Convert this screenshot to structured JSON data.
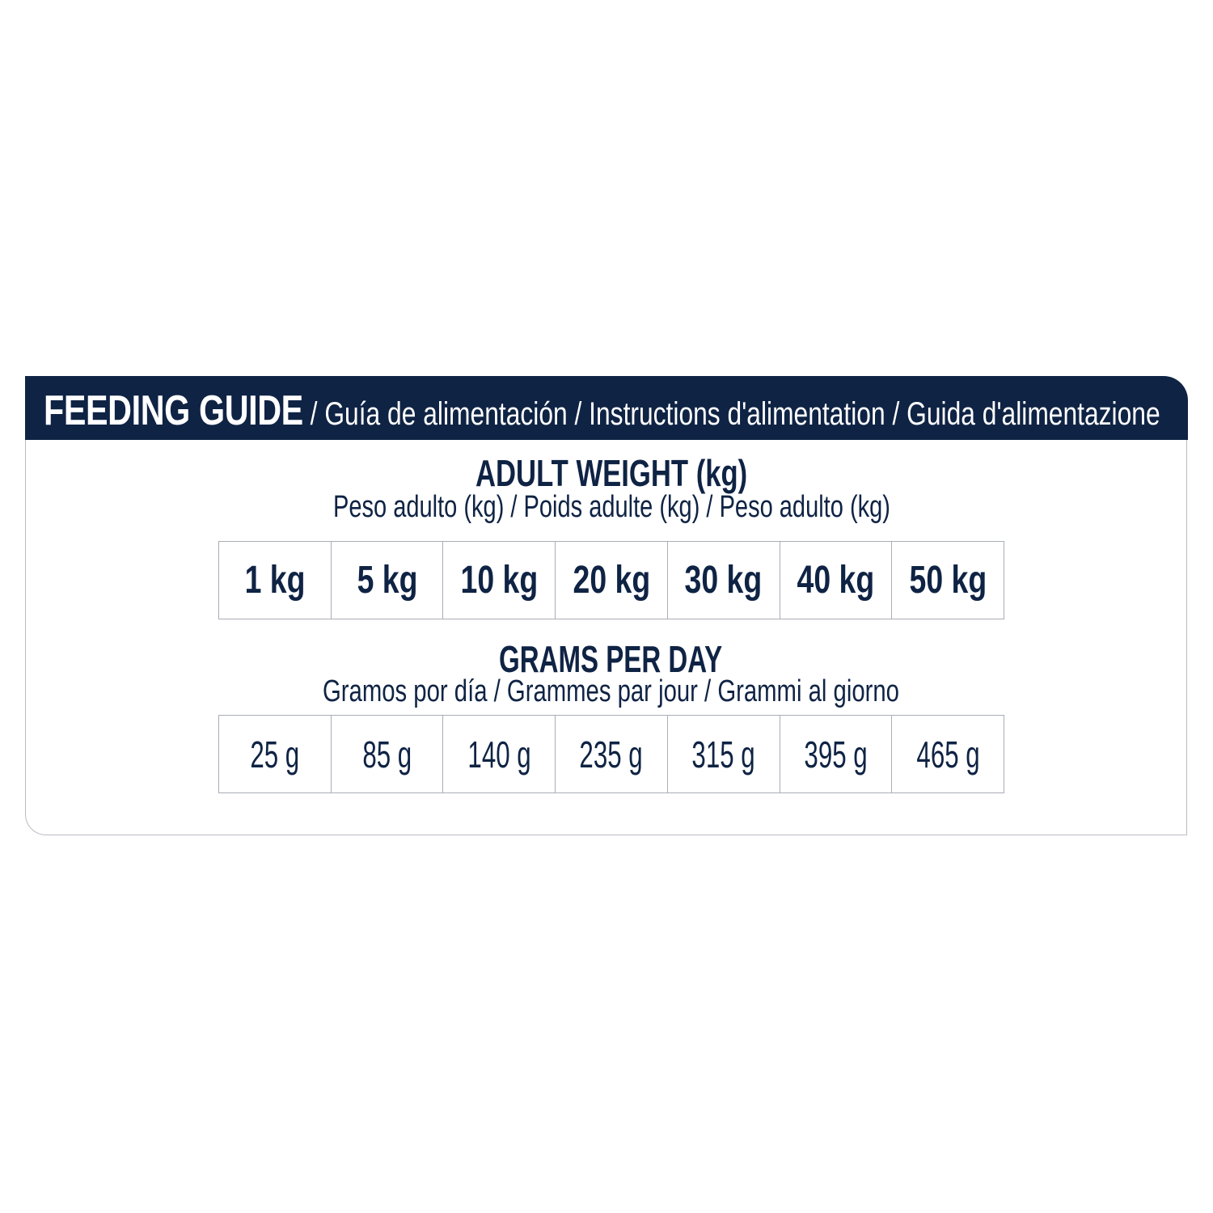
{
  "header": {
    "title": "FEEDING GUIDE",
    "translations": " / Guía de alimentación / Instructions d'alimentation / Guida d'alimentazione"
  },
  "weight_section": {
    "title": "ADULT WEIGHT (kg)",
    "subtitle": "Peso adulto (kg) / Poids adulte (kg) / Peso adulto (kg)",
    "values": [
      "1 kg",
      "5 kg",
      "10 kg",
      "20 kg",
      "30 kg",
      "40 kg",
      "50 kg"
    ]
  },
  "grams_section": {
    "title": "GRAMS PER DAY",
    "subtitle": "Gramos por día / Grammes par jour  / Grammi al giorno",
    "values": [
      "25 g",
      "85 g",
      "140 g",
      "235 g",
      "315 g",
      "395 g",
      "465 g"
    ]
  },
  "colors": {
    "navy": "#0f2344",
    "border": "#a9adb6"
  }
}
